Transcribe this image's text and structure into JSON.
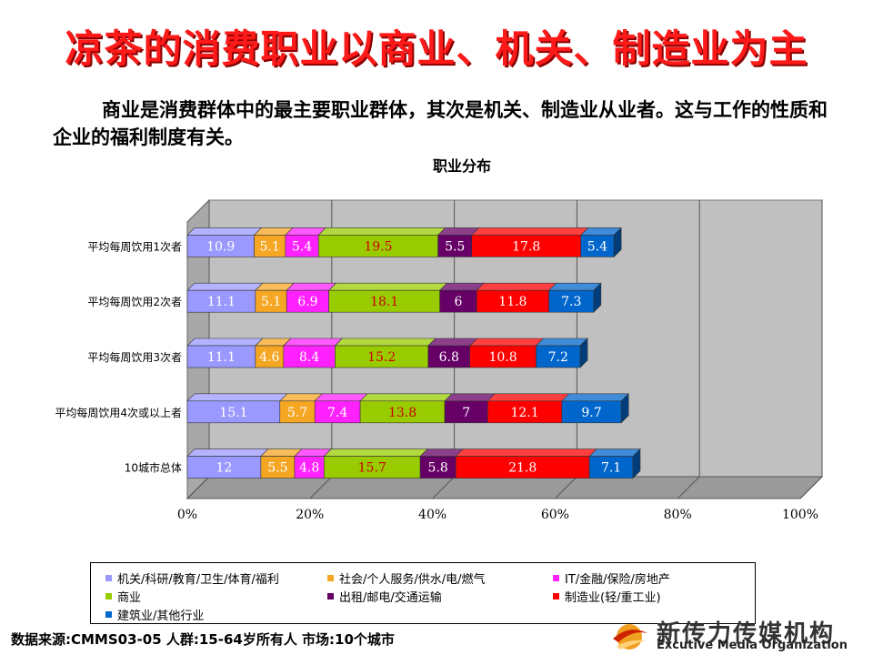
{
  "title": "凉茶的消费职业以商业、机关、制造业为主",
  "intro": "商业是消费群体中的最主要职业群体，其次是机关、制造业从业者。这与工作的性质和企业的福利制度有关。",
  "chart_data": {
    "type": "bar",
    "orientation": "horizontal",
    "stacked": "percent",
    "title": "职业分布",
    "categories": [
      "平均每周饮用1次者",
      "平均每周饮用2次者",
      "平均每周饮用3次者",
      "平均每周饮用4次或以上者",
      "10城市总体"
    ],
    "xticks": [
      "0%",
      "20%",
      "40%",
      "60%",
      "80%",
      "100%"
    ],
    "xlim": [
      0,
      100
    ],
    "legend_position": "bottom",
    "series": [
      {
        "name": "机关/科研/教育/卫生/体育/福利",
        "color": "#9999ff",
        "values": [
          10.9,
          11.1,
          11.1,
          15.1,
          12
        ]
      },
      {
        "name": "社会/个人服务/供水/电/燃气",
        "color": "#f5a623",
        "values": [
          5.1,
          5.1,
          4.6,
          5.7,
          5.5
        ]
      },
      {
        "name": "IT/金融/保险/房地产",
        "color": "#ff22ff",
        "values": [
          5.4,
          6.9,
          8.4,
          7.4,
          4.8
        ]
      },
      {
        "name": "商业",
        "color": "#99cc00",
        "values": [
          19.5,
          18.1,
          15.2,
          13.8,
          15.7
        ]
      },
      {
        "name": "出租/邮电/交通运输",
        "color": "#660066",
        "values": [
          5.5,
          6,
          6.8,
          7,
          5.8
        ]
      },
      {
        "name": "制造业(轻/重工业)",
        "color": "#ff0000",
        "values": [
          17.8,
          11.8,
          10.8,
          12.1,
          21.8
        ]
      },
      {
        "name": "建筑业/其他行业",
        "color": "#0066cc",
        "values": [
          5.4,
          7.3,
          7.2,
          9.7,
          7.1
        ]
      }
    ],
    "value_labels": [
      [
        "10.9",
        "5.1",
        "5.4",
        "19.5",
        "5.5",
        "17.8",
        "5.4"
      ],
      [
        "11.1",
        "5.1",
        "6.9",
        "18.1",
        "6",
        "11.8",
        "7.3"
      ],
      [
        "11.1",
        "4.6",
        "8.4",
        "15.2",
        "6.8",
        "10.8",
        "7.2"
      ],
      [
        "15.1",
        "5.7",
        "7.4",
        "13.8",
        "7",
        "12.1",
        "9.7"
      ],
      [
        "12",
        "5.5",
        "4.8",
        "15.7",
        "5.8",
        "21.8",
        "7.1"
      ]
    ],
    "label_colors": [
      "#ffffff",
      "#ffffff",
      "#ffffff",
      "#cc0000",
      "#ffffff",
      "#ffffff",
      "#ffffff"
    ]
  },
  "source": "数据来源:CMMS03-05 人群:15-64岁所有人 市场:10个城市",
  "logo": {
    "name": "新传力传媒机构",
    "sub": "Excutive Media Organization"
  }
}
